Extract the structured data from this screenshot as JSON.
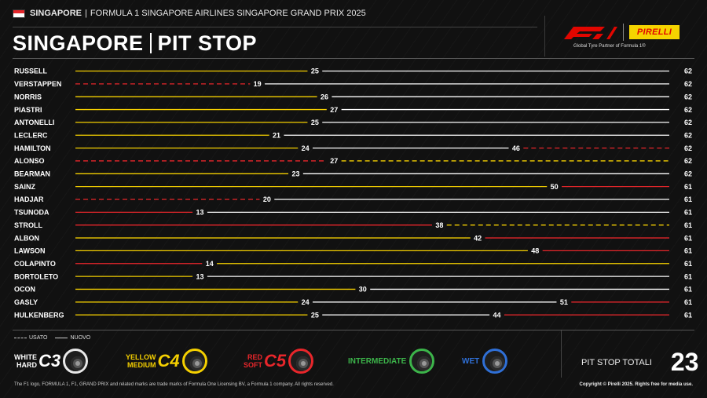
{
  "header": {
    "city": "SINGAPORE",
    "event": "FORMULA 1 SINGAPORE AIRLINES SINGAPORE GRAND PRIX 2025",
    "title_left": "SINGAPORE",
    "title_right": "PIT STOP",
    "f1_logo": "F1",
    "pirelli_logo": "PIRELLI",
    "partner": "Global Tyre Partner of Formula 1®"
  },
  "colors": {
    "C3": "#ffffff",
    "C4": "#f5d000",
    "C5": "#e8262b",
    "intermediate": "#3cb44a",
    "wet": "#2f6fd6",
    "background": "#111111"
  },
  "chart_data": {
    "type": "stint-bar",
    "x_range": [
      0,
      62
    ],
    "drivers": [
      {
        "name": "RUSSELL",
        "stints": [
          {
            "compound": "C4",
            "used": false,
            "end": 25
          },
          {
            "compound": "C3",
            "used": false,
            "end": 62
          }
        ]
      },
      {
        "name": "VERSTAPPEN",
        "stints": [
          {
            "compound": "C5",
            "used": true,
            "end": 19
          },
          {
            "compound": "C3",
            "used": false,
            "end": 62
          }
        ]
      },
      {
        "name": "NORRIS",
        "stints": [
          {
            "compound": "C4",
            "used": false,
            "end": 26
          },
          {
            "compound": "C3",
            "used": false,
            "end": 62
          }
        ]
      },
      {
        "name": "PIASTRI",
        "stints": [
          {
            "compound": "C4",
            "used": false,
            "end": 27
          },
          {
            "compound": "C3",
            "used": false,
            "end": 62
          }
        ]
      },
      {
        "name": "ANTONELLI",
        "stints": [
          {
            "compound": "C4",
            "used": false,
            "end": 25
          },
          {
            "compound": "C3",
            "used": false,
            "end": 62
          }
        ]
      },
      {
        "name": "LECLERC",
        "stints": [
          {
            "compound": "C4",
            "used": false,
            "end": 21
          },
          {
            "compound": "C3",
            "used": false,
            "end": 62
          }
        ]
      },
      {
        "name": "HAMILTON",
        "stints": [
          {
            "compound": "C4",
            "used": false,
            "end": 24
          },
          {
            "compound": "C3",
            "used": false,
            "end": 46
          },
          {
            "compound": "C5",
            "used": true,
            "end": 62
          }
        ]
      },
      {
        "name": "ALONSO",
        "stints": [
          {
            "compound": "C5",
            "used": true,
            "end": 27
          },
          {
            "compound": "C4",
            "used": true,
            "end": 62
          }
        ]
      },
      {
        "name": "BEARMAN",
        "stints": [
          {
            "compound": "C4",
            "used": false,
            "end": 23
          },
          {
            "compound": "C3",
            "used": false,
            "end": 62
          }
        ]
      },
      {
        "name": "SAINZ",
        "stints": [
          {
            "compound": "C4",
            "used": false,
            "end": 50
          },
          {
            "compound": "C5",
            "used": false,
            "end": 61
          }
        ]
      },
      {
        "name": "HADJAR",
        "stints": [
          {
            "compound": "C5",
            "used": true,
            "end": 20
          },
          {
            "compound": "C3",
            "used": false,
            "end": 61
          }
        ]
      },
      {
        "name": "TSUNODA",
        "stints": [
          {
            "compound": "C5",
            "used": false,
            "end": 13
          },
          {
            "compound": "C3",
            "used": false,
            "end": 61
          }
        ]
      },
      {
        "name": "STROLL",
        "stints": [
          {
            "compound": "C5",
            "used": false,
            "end": 38
          },
          {
            "compound": "C4",
            "used": true,
            "end": 61
          }
        ]
      },
      {
        "name": "ALBON",
        "stints": [
          {
            "compound": "C4",
            "used": false,
            "end": 42
          },
          {
            "compound": "C5",
            "used": false,
            "end": 61
          }
        ]
      },
      {
        "name": "LAWSON",
        "stints": [
          {
            "compound": "C4",
            "used": false,
            "end": 48
          },
          {
            "compound": "C5",
            "used": false,
            "end": 61
          }
        ]
      },
      {
        "name": "COLAPINTO",
        "stints": [
          {
            "compound": "C5",
            "used": false,
            "end": 14
          },
          {
            "compound": "C4",
            "used": false,
            "end": 61
          }
        ]
      },
      {
        "name": "BORTOLETO",
        "stints": [
          {
            "compound": "C4",
            "used": false,
            "end": 13
          },
          {
            "compound": "C3",
            "used": false,
            "end": 61
          }
        ]
      },
      {
        "name": "OCON",
        "stints": [
          {
            "compound": "C4",
            "used": false,
            "end": 30
          },
          {
            "compound": "C3",
            "used": false,
            "end": 61
          }
        ]
      },
      {
        "name": "GASLY",
        "stints": [
          {
            "compound": "C4",
            "used": false,
            "end": 24
          },
          {
            "compound": "C3",
            "used": false,
            "end": 51
          },
          {
            "compound": "C5",
            "used": false,
            "end": 61
          }
        ]
      },
      {
        "name": "HULKENBERG",
        "stints": [
          {
            "compound": "C4",
            "used": false,
            "end": 25
          },
          {
            "compound": "C3",
            "used": false,
            "end": 44
          },
          {
            "compound": "C5",
            "used": false,
            "end": 61
          }
        ]
      }
    ]
  },
  "legend": {
    "used": "USATO",
    "new": "NUOVO",
    "tyres": [
      {
        "line1": "WHITE",
        "line2": "HARD",
        "code": "C3",
        "color_key": "C3"
      },
      {
        "line1": "YELLOW",
        "line2": "MEDIUM",
        "code": "C4",
        "color_key": "C4"
      },
      {
        "line1": "RED",
        "line2": "SOFT",
        "code": "C5",
        "color_key": "C5"
      },
      {
        "label": "INTERMEDIATE",
        "color_key": "intermediate"
      },
      {
        "label": "WET",
        "color_key": "wet"
      }
    ]
  },
  "totals": {
    "label": "PIT STOP TOTALI",
    "value": "23"
  },
  "footer": {
    "left": "The F1 logo, FORMULA 1, F1, GRAND PRIX and related marks are trade marks of Formula One Licensing BV, a Formula 1 company. All rights reserved.",
    "right": "Copyright © Pirelli 2025. Rights free for media use."
  }
}
